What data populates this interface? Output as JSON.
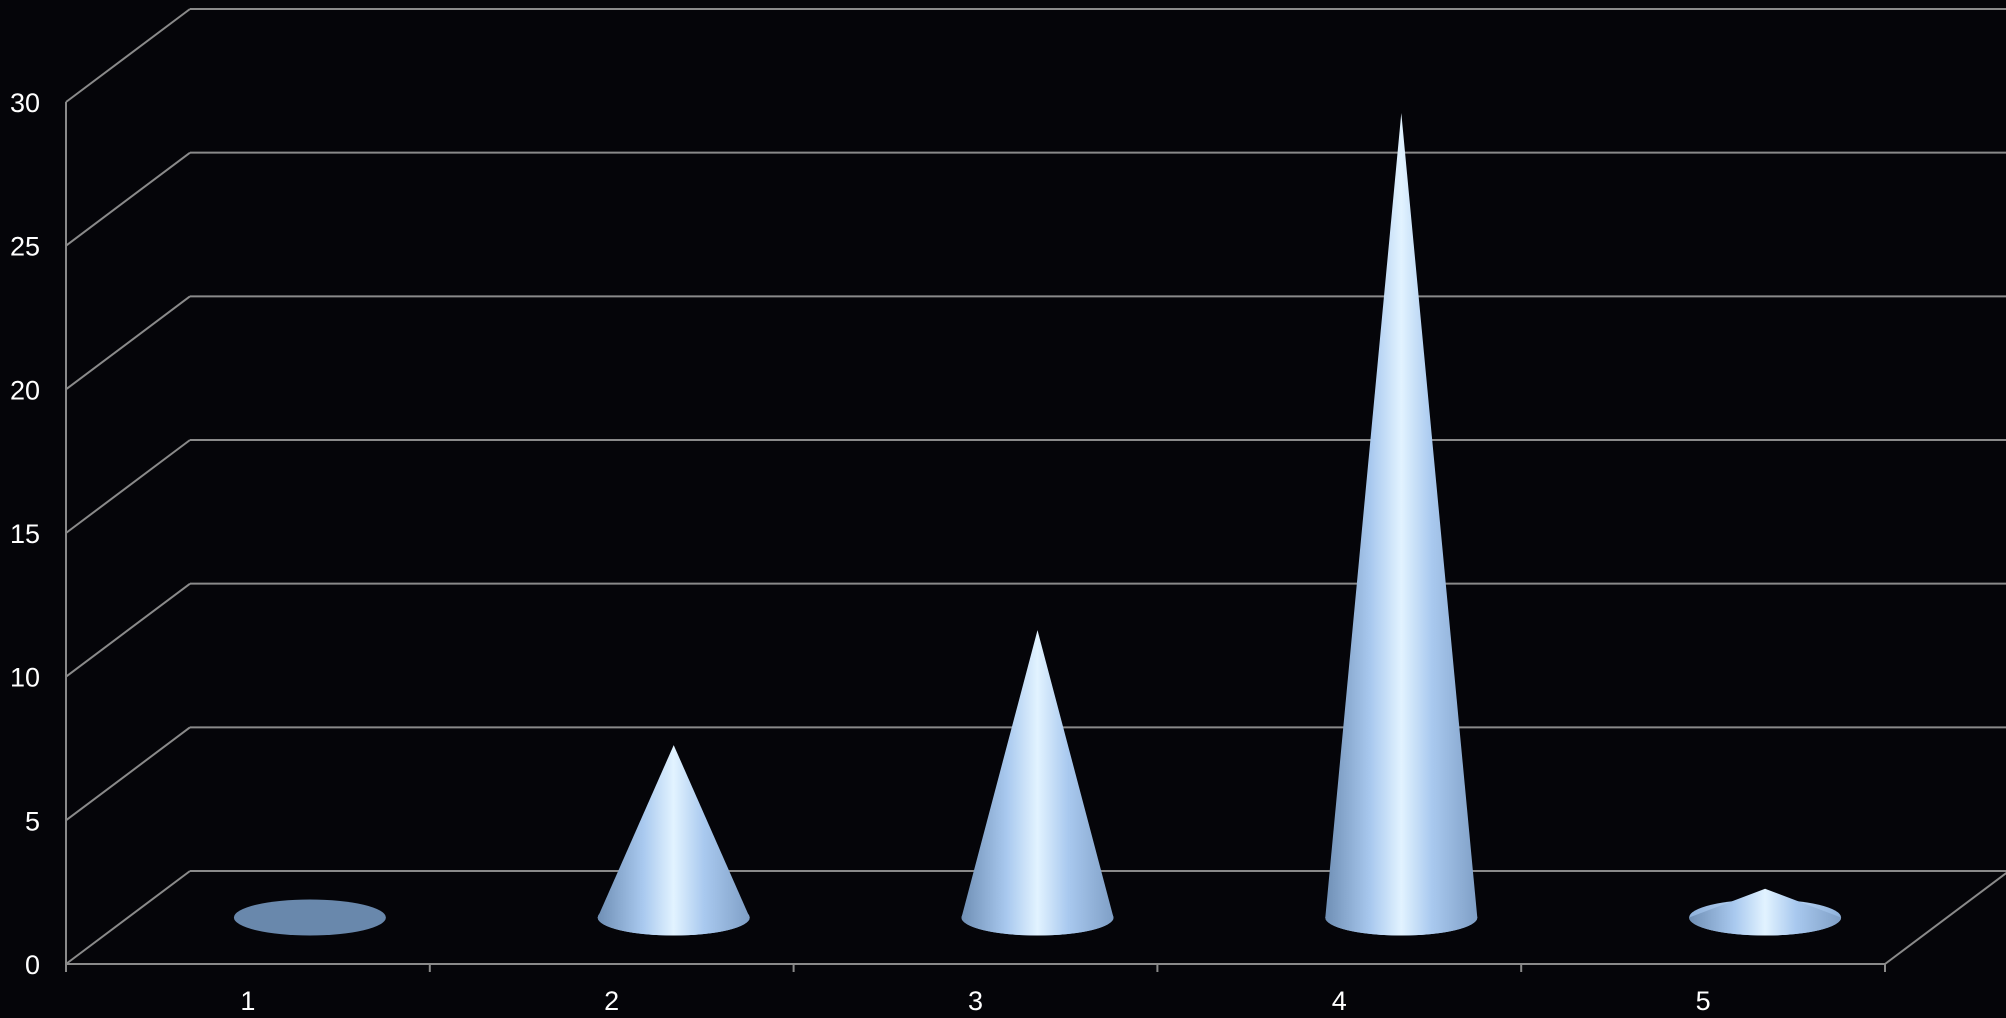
{
  "chart_data": {
    "type": "bar",
    "style": "3d-cone",
    "categories": [
      "1",
      "2",
      "3",
      "4",
      "5"
    ],
    "values": [
      0,
      6,
      10,
      28,
      1
    ],
    "ylim": [
      0,
      30
    ],
    "yticks": [
      0,
      5,
      10,
      15,
      20,
      25,
      30
    ],
    "grid": true,
    "legend": "none",
    "title": "",
    "xlabel": "",
    "ylabel": ""
  },
  "colors": {
    "background": "#050509",
    "gridline": "#8a8a8a",
    "axis_text": "#ffffff",
    "cone_light": "#e2f3ff",
    "cone_mid": "#a9c9ef",
    "cone_dark": "#6f8fb5"
  }
}
